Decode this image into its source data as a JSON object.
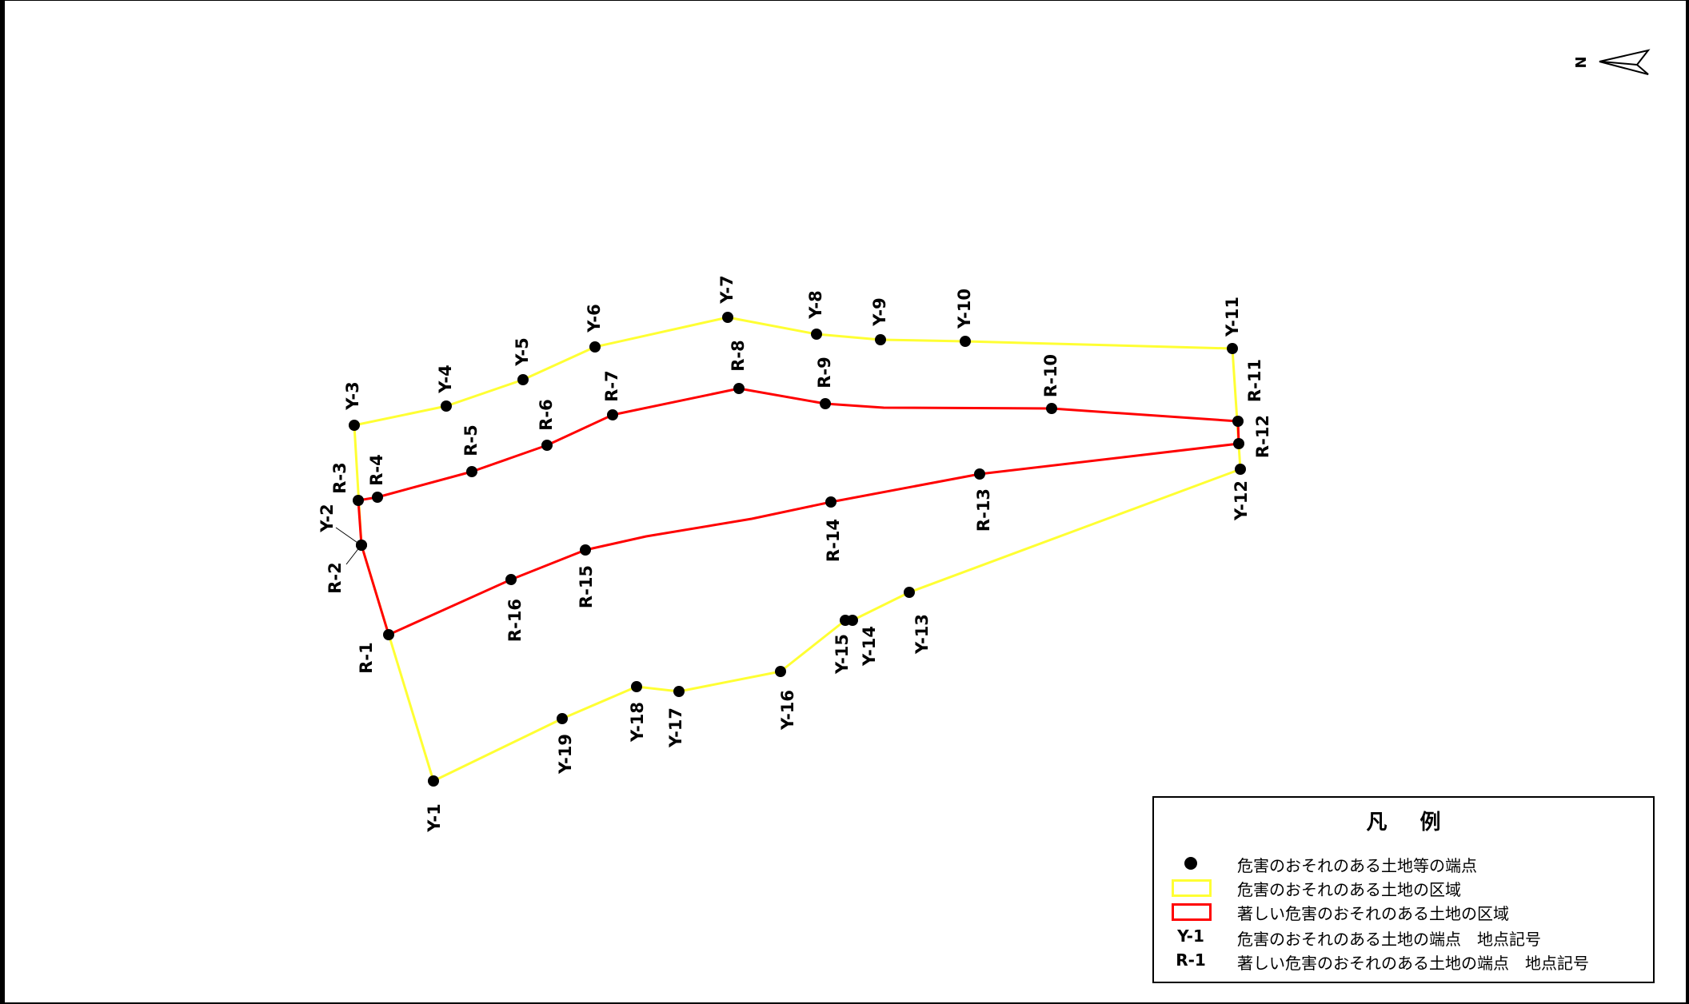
{
  "map": {
    "north_label": "N",
    "colors": {
      "yellow_line": "#ffff33",
      "red_line": "#ff0000",
      "point": "#000000"
    },
    "yellow_points": [
      "Y-1",
      "Y-2",
      "Y-3",
      "Y-4",
      "Y-5",
      "Y-6",
      "Y-7",
      "Y-8",
      "Y-9",
      "Y-10",
      "Y-11",
      "Y-12",
      "Y-13",
      "Y-14",
      "Y-15",
      "Y-16",
      "Y-17",
      "Y-18",
      "Y-19"
    ],
    "red_points": [
      "R-1",
      "R-2",
      "R-3",
      "R-4",
      "R-5",
      "R-6",
      "R-7",
      "R-8",
      "R-9",
      "R-10",
      "R-11",
      "R-12",
      "R-13",
      "R-14",
      "R-15",
      "R-16"
    ]
  },
  "legend": {
    "title": "凡 例",
    "items": [
      {
        "symbol": "dot-icon",
        "text": "危害のおそれのある土地等の端点"
      },
      {
        "symbol": "yellow-box-icon",
        "text": "危害のおそれのある土地の区域"
      },
      {
        "symbol": "red-box-icon",
        "text": "著しい危害のおそれのある土地の区域"
      },
      {
        "code": "Y-1",
        "text": "危害のおそれのある土地の端点　地点記号"
      },
      {
        "code": "R-1",
        "text": "著しい危害のおそれのある土地の端点　地点記号"
      }
    ]
  }
}
